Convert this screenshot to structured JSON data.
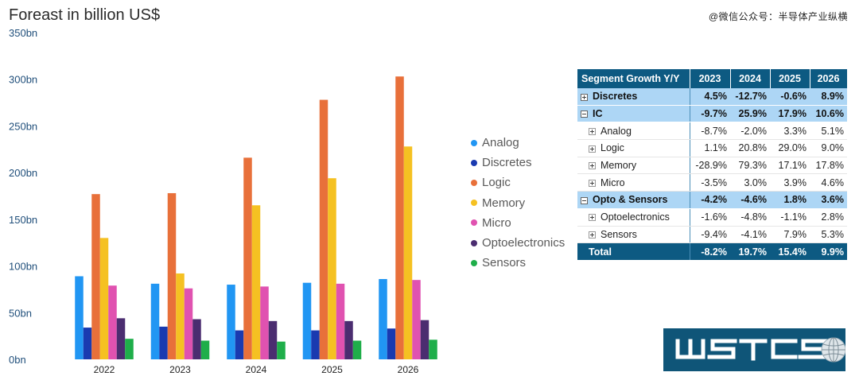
{
  "title": "Foreast in billion US$",
  "watermark": "@微信公众号：半导体产业纵横",
  "colors": {
    "Analog": "#2196f3",
    "Discretes": "#1a3ab0",
    "Logic": "#e8703a",
    "Memory": "#f5c122",
    "Micro": "#e052b0",
    "Optoelectronics": "#4b2d70",
    "Sensors": "#1fae4a"
  },
  "chart_data": {
    "type": "bar",
    "title": "Foreast in billion US$",
    "categories": [
      "2022",
      "2023",
      "2024",
      "2025",
      "2026"
    ],
    "ylim": [
      0,
      350
    ],
    "yticks": [
      "0bn",
      "50bn",
      "100bn",
      "150bn",
      "200bn",
      "250bn",
      "300bn",
      "350bn"
    ],
    "grid": false,
    "legend_position": "right",
    "series": [
      {
        "name": "Analog",
        "values": [
          89,
          81,
          80,
          82,
          86
        ]
      },
      {
        "name": "Discretes",
        "values": [
          34,
          35,
          31,
          31,
          33
        ]
      },
      {
        "name": "Logic",
        "values": [
          177,
          178,
          216,
          278,
          303
        ]
      },
      {
        "name": "Memory",
        "values": [
          130,
          92,
          165,
          194,
          228
        ]
      },
      {
        "name": "Micro",
        "values": [
          79,
          76,
          78,
          81,
          85
        ]
      },
      {
        "name": "Optoelectronics",
        "values": [
          44,
          43,
          41,
          41,
          42
        ]
      },
      {
        "name": "Sensors",
        "values": [
          22,
          20,
          19,
          20,
          21
        ]
      }
    ]
  },
  "table": {
    "header": [
      "Segment Growth Y/Y",
      "2023",
      "2024",
      "2025",
      "2026"
    ],
    "rows": [
      {
        "name": "Discretes",
        "type": "group",
        "expander": "plus",
        "values": [
          "4.5%",
          "-12.7%",
          "-0.6%",
          "8.9%"
        ]
      },
      {
        "name": "IC",
        "type": "group",
        "expander": "minus",
        "values": [
          "-9.7%",
          "25.9%",
          "17.9%",
          "10.6%"
        ]
      },
      {
        "name": "Analog",
        "type": "sub",
        "expander": "plus",
        "values": [
          "-8.7%",
          "-2.0%",
          "3.3%",
          "5.1%"
        ]
      },
      {
        "name": "Logic",
        "type": "sub",
        "expander": "plus",
        "values": [
          "1.1%",
          "20.8%",
          "29.0%",
          "9.0%"
        ]
      },
      {
        "name": "Memory",
        "type": "sub",
        "expander": "plus",
        "values": [
          "-28.9%",
          "79.3%",
          "17.1%",
          "17.8%"
        ]
      },
      {
        "name": "Micro",
        "type": "sub",
        "expander": "plus",
        "values": [
          "-3.5%",
          "3.0%",
          "3.9%",
          "4.6%"
        ]
      },
      {
        "name": "Opto & Sensors",
        "type": "group",
        "expander": "minus",
        "values": [
          "-4.2%",
          "-4.6%",
          "1.8%",
          "3.6%"
        ]
      },
      {
        "name": "Optoelectronics",
        "type": "sub",
        "expander": "plus",
        "values": [
          "-1.6%",
          "-4.8%",
          "-1.1%",
          "2.8%"
        ]
      },
      {
        "name": "Sensors",
        "type": "sub",
        "expander": "plus",
        "values": [
          "-9.4%",
          "-4.1%",
          "7.9%",
          "5.3%"
        ]
      },
      {
        "name": "Total",
        "type": "total",
        "expander": "none",
        "values": [
          "-8.2%",
          "19.7%",
          "15.4%",
          "9.9%"
        ]
      }
    ]
  },
  "logo": {
    "text": "WSTS",
    "icon": "globe-icon"
  }
}
